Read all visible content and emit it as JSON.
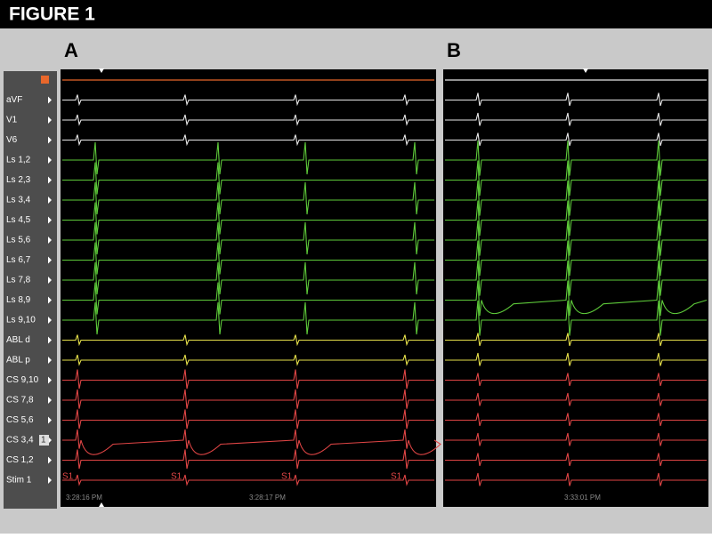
{
  "header": {
    "title": "FIGURE 1"
  },
  "channels": [
    "aVF",
    "V1",
    "V6",
    "Ls 1,2",
    "Ls 2,3",
    "Ls 3,4",
    "Ls 4,5",
    "Ls 5,6",
    "Ls 6,7",
    "Ls 7,8",
    "Ls 8,9",
    "Ls 9,10",
    "ABL d",
    "ABL p",
    "CS 9,10",
    "CS 7,8",
    "CS 5,6",
    "CS 3,4",
    "CS 1,2",
    "Stim 1"
  ],
  "badge": "1",
  "panels": [
    {
      "label": "A",
      "timestamps": [
        "3:28:16 PM",
        "3:28:17 PM"
      ],
      "stim_labels": [
        "S1",
        "S1",
        "S1",
        "S1"
      ]
    },
    {
      "label": "B",
      "timestamps": [
        "3:33:01 PM"
      ]
    }
  ]
}
